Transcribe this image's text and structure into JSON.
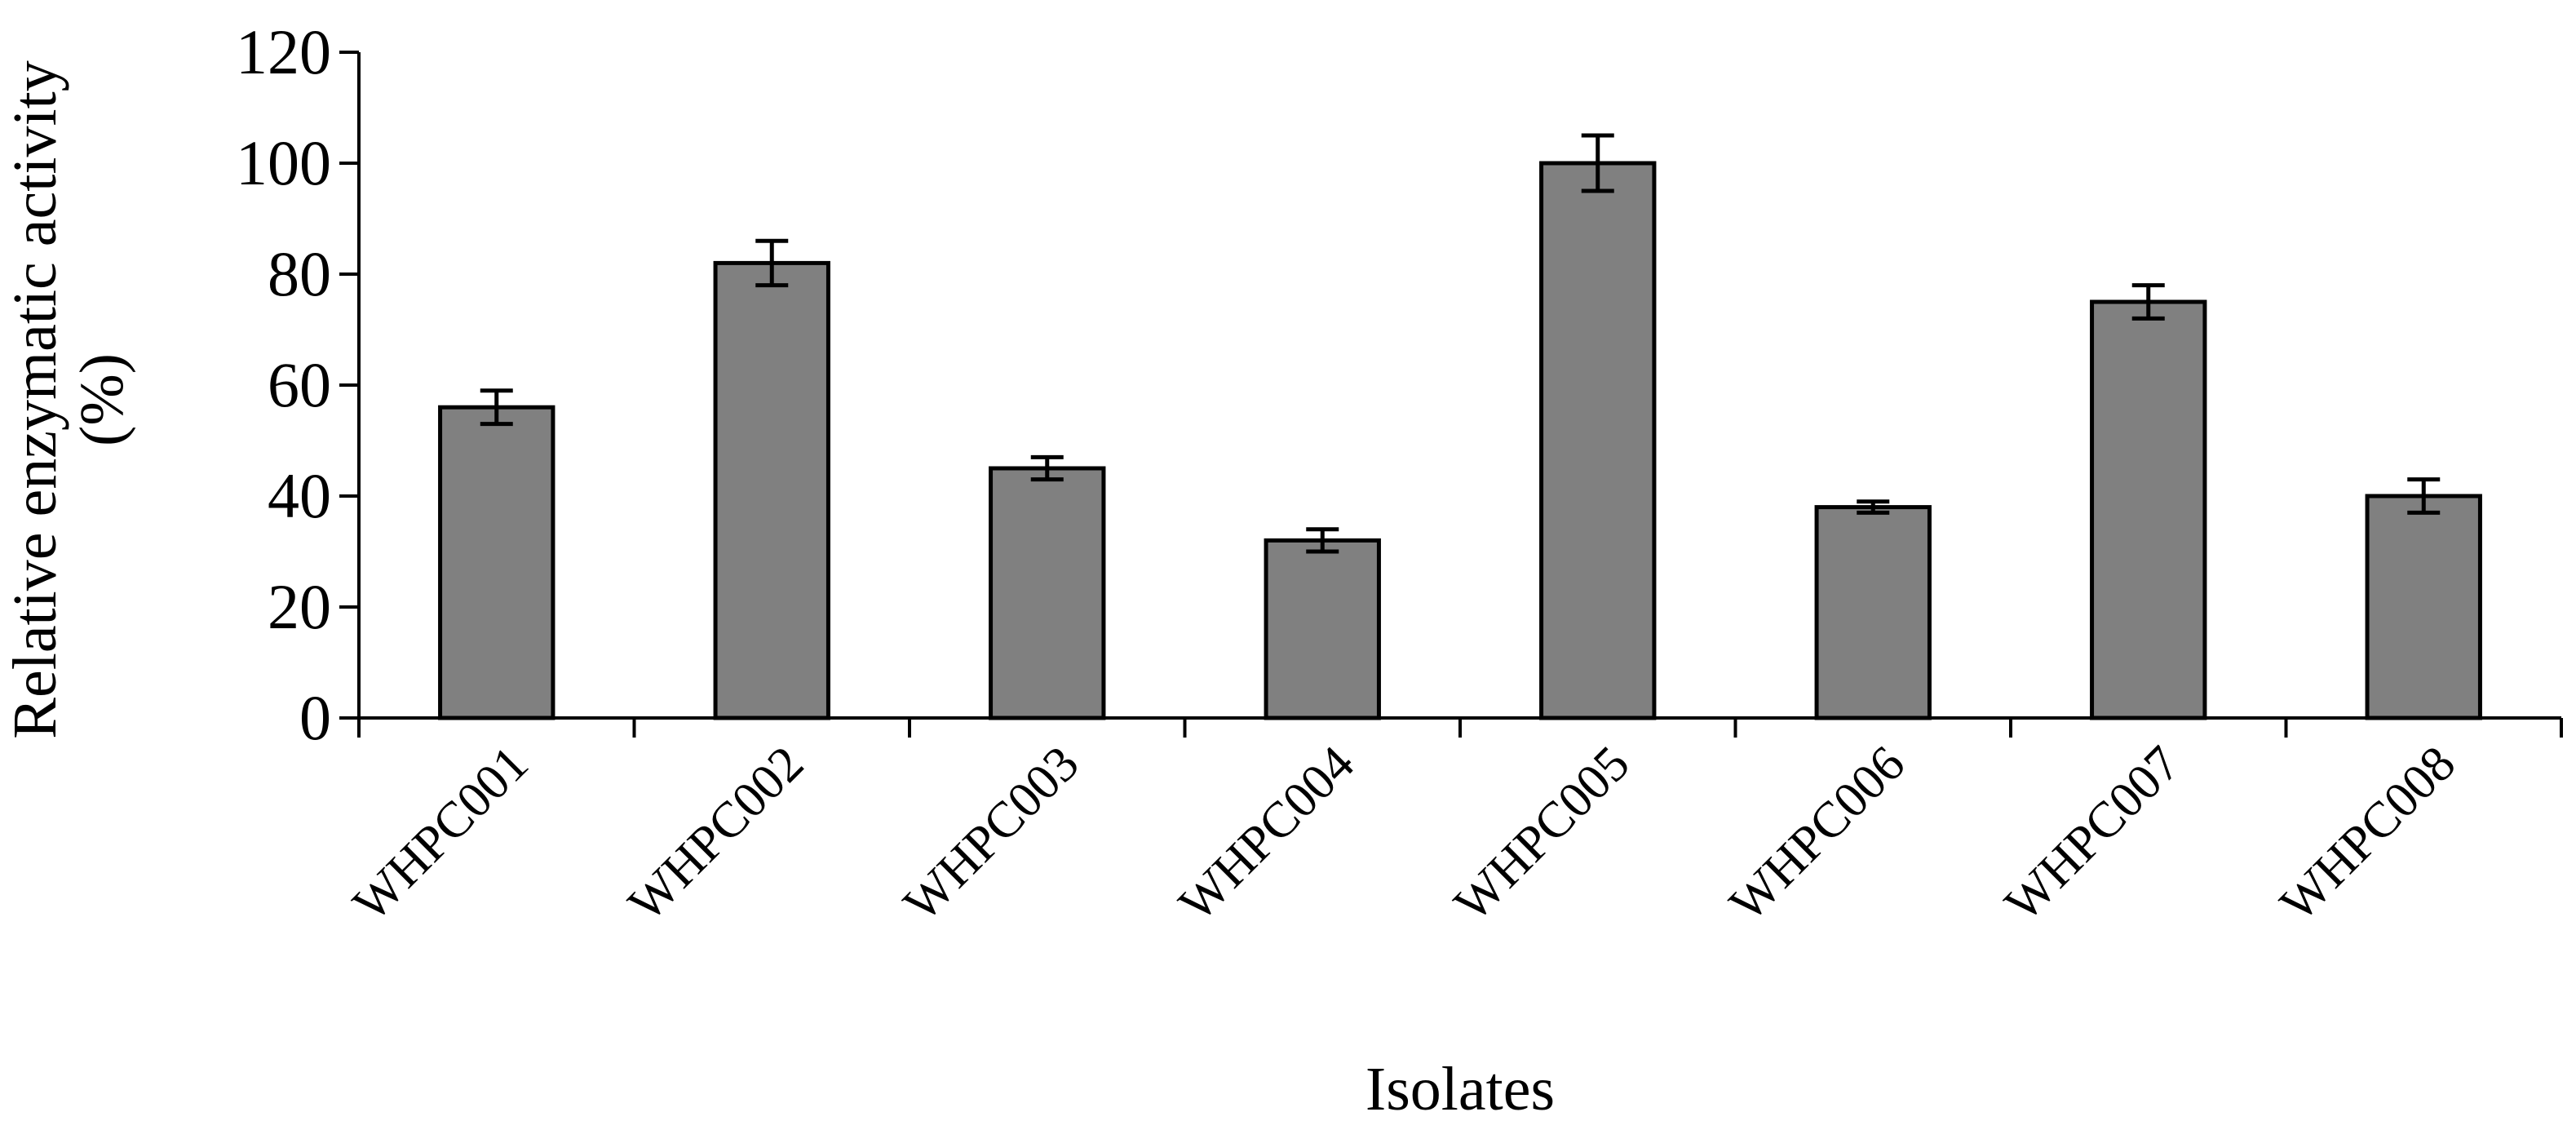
{
  "chart_data": {
    "type": "bar",
    "title": "",
    "xlabel": "Isolates",
    "ylabel_lines": [
      "Relative enzymatic activity",
      "(%)"
    ],
    "categories": [
      "WHPC001",
      "WHPC002",
      "WHPC003",
      "WHPC004",
      "WHPC005",
      "WHPC006",
      "WHPC007",
      "WHPC008"
    ],
    "values": [
      56,
      82,
      45,
      32,
      100,
      38,
      75,
      40
    ],
    "errors": [
      3,
      4,
      2,
      2,
      5,
      1,
      3,
      3
    ],
    "ylim": [
      0,
      120
    ],
    "yticks": [
      "0",
      "20",
      "40",
      "60",
      "80",
      "100",
      "120"
    ],
    "grid": false,
    "legend": "none",
    "bar_color": "#808080",
    "edge_color": "#000000"
  }
}
